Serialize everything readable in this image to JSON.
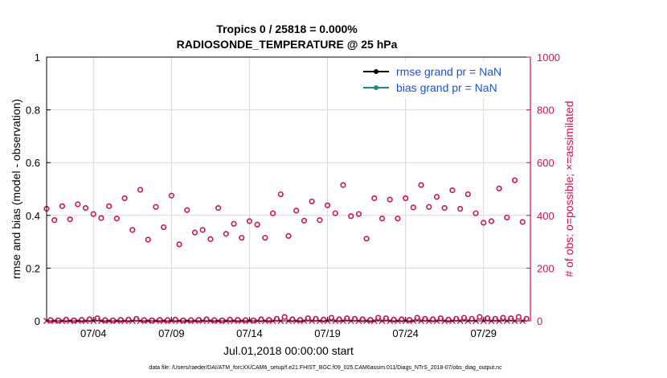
{
  "chart_data": {
    "type": "scatter",
    "title_line1": "Tropics 0 / 25818 = 0.000%",
    "title_line2": "RADIOSONDE_TEMPERATURE @ 25 hPa",
    "xlabel": "Jul.01,2018 00:00:00 start",
    "ylabel_left": "rmse and bias (model - observation)",
    "ylabel_right": "# of obs: o=possible; ×=assimilated",
    "footer": "data file: /Users/raeder/DAI/ATM_forcXX/CAM6_setup/f.e21.FHIST_BGC.f09_025.CAM6assim.011/Diags_NTrS_2018-07/obs_diag_output.nc",
    "ylim_left": [
      0,
      1
    ],
    "ylim_right": [
      0,
      1000
    ],
    "xlim_days": [
      0,
      31
    ],
    "x_tick_days": [
      3,
      8,
      13,
      18,
      23,
      28
    ],
    "x_tick_labels": [
      "07/04",
      "07/09",
      "07/14",
      "07/19",
      "07/24",
      "07/29"
    ],
    "y_ticks_left": [
      "0",
      "0.2",
      "0.4",
      "0.6",
      "0.8",
      "1"
    ],
    "y_ticks_right": [
      "0",
      "200",
      "400",
      "600",
      "800",
      "1000"
    ],
    "legend": [
      {
        "label": "rmse grand pr = NaN",
        "color": "#000000"
      },
      {
        "label": "bias grand pr = NaN",
        "color": "#1a8a8a"
      }
    ],
    "colors": {
      "obs": "#cc1155",
      "grid": "#d9d9d9",
      "axis": "#000000"
    },
    "series": [
      {
        "name": "possible obs (o)",
        "x_days": [
          0.0,
          0.5,
          1.0,
          1.5,
          2.0,
          2.5,
          3.0,
          3.5,
          4.0,
          4.5,
          5.0,
          5.5,
          6.0,
          6.5,
          7.0,
          7.5,
          8.0,
          8.5,
          9.0,
          9.5,
          10.0,
          10.5,
          11.0,
          11.5,
          12.0,
          12.5,
          13.0,
          13.5,
          14.0,
          14.5,
          15.0,
          15.5,
          16.0,
          16.5,
          17.0,
          17.5,
          18.0,
          18.5,
          19.0,
          19.5,
          20.0,
          20.5,
          21.0,
          21.5,
          22.0,
          22.5,
          23.0,
          23.5,
          24.0,
          24.5,
          25.0,
          25.5,
          26.0,
          26.5,
          27.0,
          27.5,
          28.0,
          28.5,
          29.0,
          29.5,
          30.0,
          30.5
        ],
        "values": [
          425,
          382,
          435,
          385,
          442,
          428,
          405,
          390,
          435,
          388,
          465,
          345,
          497,
          308,
          432,
          355,
          475,
          290,
          420,
          335,
          345,
          310,
          428,
          330,
          368,
          315,
          378,
          365,
          315,
          408,
          480,
          322,
          418,
          380,
          453,
          382,
          438,
          408,
          515,
          397,
          405,
          312,
          465,
          388,
          460,
          388,
          465,
          430,
          515,
          432,
          470,
          428,
          495,
          425,
          480,
          408,
          372,
          378,
          502,
          392,
          533,
          375
        ]
      },
      {
        "name": "assimilated obs (x)",
        "x_days": [
          0.0,
          0.5,
          1.0,
          1.5,
          2.0,
          2.5,
          3.0,
          3.5,
          4.0,
          4.5,
          5.0,
          5.5,
          6.0,
          6.5,
          7.0,
          7.5,
          8.0,
          8.5,
          9.0,
          9.5,
          10.0,
          10.5,
          11.0,
          11.5,
          12.0,
          12.5,
          13.0,
          13.5,
          14.0,
          14.5,
          15.0,
          15.5,
          16.0,
          16.5,
          17.0,
          17.5,
          18.0,
          18.5,
          19.0,
          19.5,
          20.0,
          20.5,
          21.0,
          21.5,
          22.0,
          22.5,
          23.0,
          23.5,
          24.0,
          24.5,
          25.0,
          25.5,
          26.0,
          26.5,
          27.0,
          27.5,
          28.0,
          28.5,
          29.0,
          29.5,
          30.0,
          30.5
        ],
        "values": [
          0,
          0,
          0,
          0,
          0,
          0,
          0,
          0,
          0,
          0,
          0,
          0,
          0,
          0,
          0,
          0,
          0,
          0,
          0,
          0,
          0,
          0,
          0,
          0,
          0,
          0,
          0,
          0,
          0,
          0,
          0,
          0,
          0,
          0,
          0,
          0,
          0,
          0,
          0,
          0,
          0,
          0,
          0,
          0,
          0,
          0,
          0,
          0,
          0,
          0,
          0,
          0,
          0,
          0,
          0,
          0,
          0,
          0,
          0,
          0,
          0,
          0
        ]
      },
      {
        "name": "possible obs near zero (o)",
        "x_days": [
          0.25,
          0.75,
          1.25,
          1.75,
          2.25,
          2.75,
          3.25,
          3.75,
          4.25,
          4.75,
          5.25,
          5.75,
          6.25,
          6.75,
          7.25,
          7.75,
          8.25,
          8.75,
          9.25,
          9.75,
          10.25,
          10.75,
          11.25,
          11.75,
          12.25,
          12.75,
          13.25,
          13.75,
          14.25,
          14.75,
          15.25,
          15.75,
          16.25,
          16.75,
          17.25,
          17.75,
          18.25,
          18.75,
          19.25,
          19.75,
          20.25,
          20.75,
          21.25,
          21.75,
          22.25,
          22.75,
          23.25,
          23.75,
          24.25,
          24.75,
          25.25,
          25.75,
          26.25,
          26.75,
          27.25,
          27.75,
          28.25,
          28.75,
          29.25,
          29.75,
          30.25,
          30.75
        ],
        "values": [
          3,
          2,
          5,
          2,
          4,
          6,
          10,
          3,
          2,
          4,
          5,
          8,
          3,
          2,
          4,
          3,
          5,
          2,
          3,
          4,
          6,
          3,
          2,
          5,
          4,
          3,
          2,
          6,
          4,
          8,
          15,
          6,
          4,
          10,
          8,
          5,
          12,
          6,
          10,
          8,
          6,
          4,
          12,
          10,
          5,
          6,
          4,
          12,
          8,
          6,
          10,
          5,
          8,
          12,
          8,
          15,
          10,
          8,
          12,
          10,
          15,
          8
        ]
      }
    ]
  }
}
